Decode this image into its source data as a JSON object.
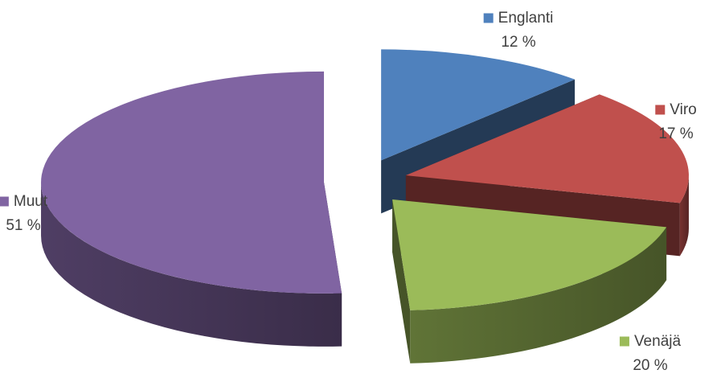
{
  "chart_data": {
    "type": "pie",
    "style": "3d-exploded",
    "title": "",
    "legend": "inline labels with color markers",
    "slices": [
      {
        "label": "Englanti",
        "value": 12,
        "value_label": "12 %",
        "color": "#4f81bd"
      },
      {
        "label": "Viro",
        "value": 17,
        "value_label": "17 %",
        "color": "#c0504d"
      },
      {
        "label": "Venäjä",
        "value": 20,
        "value_label": "20 %",
        "color": "#9bbb59"
      },
      {
        "label": "Muut",
        "value": 51,
        "value_label": "51 %",
        "color": "#8064a2"
      }
    ]
  }
}
